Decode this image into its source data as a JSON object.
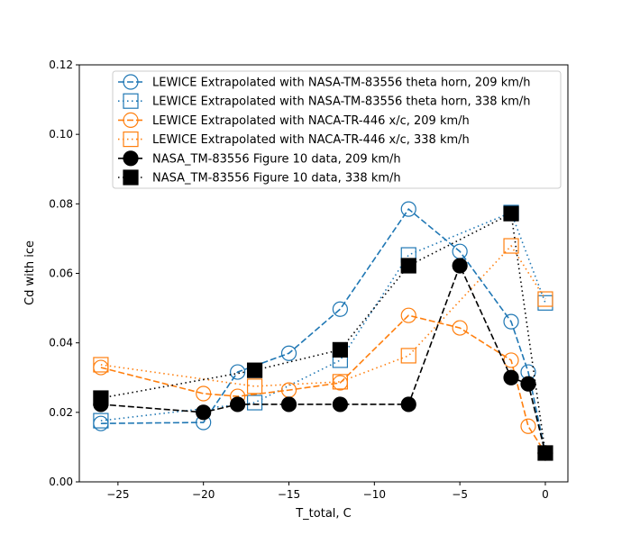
{
  "chart_data": {
    "type": "line",
    "title": "",
    "xlabel": "T_total, C",
    "ylabel": "Cd with ice",
    "xlim": [
      -27.26,
      1.32
    ],
    "ylim": [
      0,
      0.12
    ],
    "xticks": [
      -25,
      -20,
      -15,
      -10,
      -5,
      0
    ],
    "xtick_labels": [
      "−25",
      "−20",
      "−15",
      "−10",
      "−5",
      "0"
    ],
    "yticks": [
      0,
      0.02,
      0.04,
      0.06,
      0.08,
      0.1,
      0.12
    ],
    "ytick_labels": [
      "0.00",
      "0.02",
      "0.04",
      "0.06",
      "0.08",
      "0.10",
      "0.12"
    ],
    "grid": false,
    "legend_position": "top-right",
    "series": [
      {
        "name": "LEWICE Extrapolated with NASA-TM-83556 theta horn, 209 km/h",
        "color": "#1f77b4",
        "line": "dashed",
        "marker": "circle-open",
        "x": [
          -26,
          -20,
          -18,
          -15,
          -12,
          -8,
          -5,
          -2,
          -1,
          0
        ],
        "y": [
          0.0168,
          0.0171,
          0.0316,
          0.037,
          0.0497,
          0.0785,
          0.0663,
          0.0461,
          0.0316,
          0.0083
        ]
      },
      {
        "name": "LEWICE Extrapolated with NASA-TM-83556 theta horn, 338 km/h",
        "color": "#1f77b4",
        "line": "dotted",
        "marker": "square-open",
        "x": [
          -26,
          -17,
          -12,
          -8,
          -2,
          0
        ],
        "y": [
          0.0176,
          0.0228,
          0.035,
          0.0653,
          0.0775,
          0.0515
        ]
      },
      {
        "name": "LEWICE Extrapolated with NACA-TR-446 x/c, 209 km/h",
        "color": "#ff7f0e",
        "line": "dashed",
        "marker": "circle-open",
        "x": [
          -26,
          -20,
          -18,
          -15,
          -12,
          -8,
          -5,
          -2,
          -1,
          0
        ],
        "y": [
          0.0329,
          0.0254,
          0.0246,
          0.0264,
          0.0285,
          0.0479,
          0.0443,
          0.035,
          0.016,
          0.0083
        ]
      },
      {
        "name": "LEWICE Extrapolated with NACA-TR-446 x/c, 338 km/h",
        "color": "#ff7f0e",
        "line": "dotted",
        "marker": "square-open",
        "x": [
          -26,
          -17,
          -12,
          -8,
          -2,
          0
        ],
        "y": [
          0.0337,
          0.0275,
          0.0288,
          0.0363,
          0.0679,
          0.0526
        ]
      },
      {
        "name": "NASA_TM-83556 Figure 10 data, 209 km/h",
        "color": "#000000",
        "line": "dashed",
        "marker": "circle-filled",
        "x": [
          -26,
          -20,
          -18,
          -15,
          -12,
          -8,
          -5,
          -2,
          -1,
          0
        ],
        "y": [
          0.0223,
          0.02,
          0.0223,
          0.0223,
          0.0223,
          0.0223,
          0.0622,
          0.03,
          0.0282,
          0.0083
        ]
      },
      {
        "name": "NASA_TM-83556 Figure 10 data, 338 km/h",
        "color": "#000000",
        "line": "dotted",
        "marker": "square-filled",
        "x": [
          -26,
          -17,
          -12,
          -8,
          -2,
          0
        ],
        "y": [
          0.0241,
          0.0321,
          0.038,
          0.0622,
          0.0772,
          0.0083
        ]
      }
    ]
  }
}
